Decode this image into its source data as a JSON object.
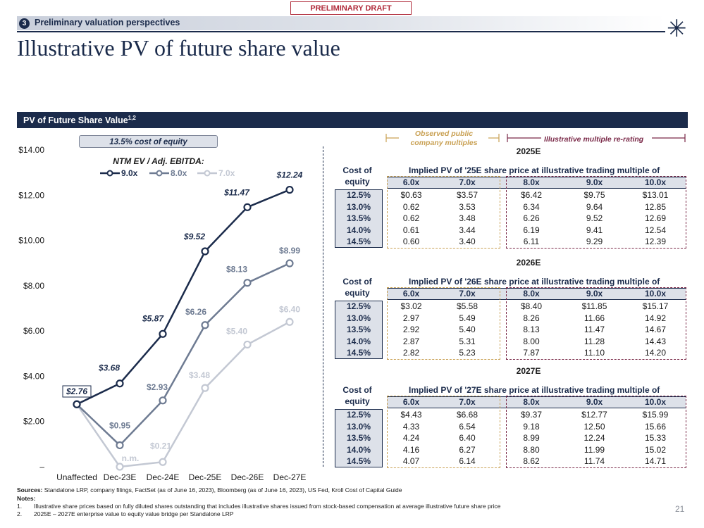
{
  "draft_label": "PRELIMINARY DRAFT",
  "section": {
    "number": "3",
    "title": "Preliminary valuation perspectives"
  },
  "title": "Illustrative PV of future share value",
  "panel": {
    "title": "PV of Future Share Value",
    "superscript": "1,2"
  },
  "cost_of_equity_label": "13.5% cost of equity",
  "brackets": {
    "observed": "Observed public company multiples",
    "illustrative": "Illustrative multiple re-rating"
  },
  "chart_data": {
    "type": "line",
    "title": "PV of Future Share Value",
    "legend_title": "NTM EV / Adj. EBITDA:",
    "categories": [
      "Unaffected",
      "Dec-23E",
      "Dec-24E",
      "Dec-25E",
      "Dec-26E",
      "Dec-27E"
    ],
    "y_ticks": [
      "$14.00",
      "$12.00",
      "$10.00",
      "$8.00",
      "$6.00",
      "$4.00",
      "$2.00",
      "–"
    ],
    "ylim": [
      0,
      14
    ],
    "series": [
      {
        "name": "9.0x",
        "color": "#1b2b4b",
        "values": [
          2.76,
          3.68,
          5.87,
          9.52,
          11.47,
          12.24
        ],
        "labels": [
          "$2.76",
          "$3.68",
          "$5.87",
          "$9.52",
          "$11.47",
          "$12.24"
        ]
      },
      {
        "name": "8.0x",
        "color": "#6e7b92",
        "values": [
          2.76,
          0.95,
          2.93,
          6.26,
          8.13,
          8.99
        ],
        "labels": [
          "",
          "$0.95",
          "$2.93",
          "$6.26",
          "$8.13",
          "$8.99"
        ]
      },
      {
        "name": "7.0x",
        "color": "#c3c8d3",
        "values": [
          2.76,
          0,
          0.21,
          3.48,
          5.4,
          6.4
        ],
        "labels": [
          "",
          "n.m.",
          "$0.21",
          "$3.48",
          "$5.40",
          "$6.40"
        ]
      }
    ]
  },
  "tables": [
    {
      "year": "2025E",
      "header": "Implied PV of '25E share price at illustrative trading multiple of",
      "coe_label": [
        "Cost of",
        "equity"
      ],
      "multiples": [
        "6.0x",
        "7.0x",
        "8.0x",
        "9.0x",
        "10.0x"
      ],
      "rows": [
        {
          "coe": "12.5%",
          "values": [
            "$0.63",
            "$3.57",
            "$6.42",
            "$9.75",
            "$13.01"
          ]
        },
        {
          "coe": "13.0%",
          "values": [
            "0.62",
            "3.53",
            "6.34",
            "9.64",
            "12.85"
          ]
        },
        {
          "coe": "13.5%",
          "values": [
            "0.62",
            "3.48",
            "6.26",
            "9.52",
            "12.69"
          ]
        },
        {
          "coe": "14.0%",
          "values": [
            "0.61",
            "3.44",
            "6.19",
            "9.41",
            "12.54"
          ]
        },
        {
          "coe": "14.5%",
          "values": [
            "0.60",
            "3.40",
            "6.11",
            "9.29",
            "12.39"
          ]
        }
      ]
    },
    {
      "year": "2026E",
      "header": "Implied PV of '26E share price at illustrative trading multiple of",
      "coe_label": [
        "Cost of",
        "equity"
      ],
      "multiples": [
        "6.0x",
        "7.0x",
        "8.0x",
        "9.0x",
        "10.0x"
      ],
      "rows": [
        {
          "coe": "12.5%",
          "values": [
            "$3.02",
            "$5.58",
            "$8.40",
            "$11.85",
            "$15.17"
          ]
        },
        {
          "coe": "13.0%",
          "values": [
            "2.97",
            "5.49",
            "8.26",
            "11.66",
            "14.92"
          ]
        },
        {
          "coe": "13.5%",
          "values": [
            "2.92",
            "5.40",
            "8.13",
            "11.47",
            "14.67"
          ]
        },
        {
          "coe": "14.0%",
          "values": [
            "2.87",
            "5.31",
            "8.00",
            "11.28",
            "14.43"
          ]
        },
        {
          "coe": "14.5%",
          "values": [
            "2.82",
            "5.23",
            "7.87",
            "11.10",
            "14.20"
          ]
        }
      ]
    },
    {
      "year": "2027E",
      "header": "Implied PV of '27E share price at illustrative trading multiple of",
      "coe_label": [
        "Cost of",
        "equity"
      ],
      "multiples": [
        "6.0x",
        "7.0x",
        "8.0x",
        "9.0x",
        "10.0x"
      ],
      "rows": [
        {
          "coe": "12.5%",
          "values": [
            "$4.43",
            "$6.68",
            "$9.37",
            "$12.77",
            "$15.99"
          ]
        },
        {
          "coe": "13.0%",
          "values": [
            "4.33",
            "6.54",
            "9.18",
            "12.50",
            "15.66"
          ]
        },
        {
          "coe": "13.5%",
          "values": [
            "4.24",
            "6.40",
            "8.99",
            "12.24",
            "15.33"
          ]
        },
        {
          "coe": "14.0%",
          "values": [
            "4.16",
            "6.27",
            "8.80",
            "11.99",
            "15.02"
          ]
        },
        {
          "coe": "14.5%",
          "values": [
            "4.07",
            "6.14",
            "8.62",
            "11.74",
            "14.71"
          ]
        }
      ]
    }
  ],
  "footer": {
    "sources_label": "Sources:",
    "sources": "Standalone LRP, company filings, FactSet (as of June 16, 2023), Bloomberg (as of June 16, 2023), US Fed, Kroll Cost of Capital Guide",
    "notes_label": "Notes:",
    "notes": [
      {
        "num": "1.",
        "text": "Illustrative share prices based on fully diluted shares outstanding that includes illustrative shares issued from stock-based compensation at average illustrative future share price"
      },
      {
        "num": "2.",
        "text": "2025E – 2027E enterprise value to equity value bridge per Standalone LRP"
      }
    ]
  },
  "page_number": "21",
  "logo_glyph": "✳"
}
